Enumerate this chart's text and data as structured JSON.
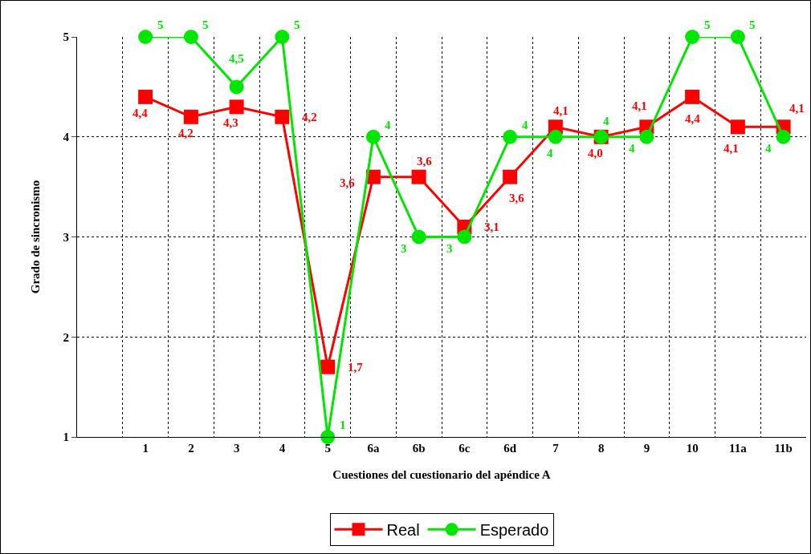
{
  "chart_data": {
    "type": "line",
    "xlabel": "Cuestiones del cuestionario del apéndice A",
    "ylabel": "Grado de sincronismo",
    "categories": [
      null,
      "1",
      "2",
      "3",
      "4",
      "5",
      "6a",
      "6b",
      "6c",
      "6d",
      "7",
      "8",
      "9",
      "10",
      "11a",
      "11b"
    ],
    "series": [
      {
        "name": "Real",
        "color": "#ff0000",
        "marker": "square",
        "values": [
          null,
          4.4,
          4.2,
          4.3,
          4.2,
          1.7,
          3.6,
          3.6,
          3.1,
          3.6,
          4.1,
          4.0,
          4.1,
          4.4,
          4.1,
          4.1
        ],
        "value_labels": [
          null,
          "4,4",
          "4,2",
          "4,3",
          "4,2",
          "1,7",
          "3,6",
          "3,6",
          "3,1",
          "3,6",
          "4,1",
          "4,0",
          "4,1",
          "4,4",
          "4,1",
          "4,1"
        ]
      },
      {
        "name": "Esperado",
        "color": "#00e600",
        "marker": "circle",
        "values": [
          null,
          5,
          5,
          4.5,
          5,
          1,
          4,
          3,
          3,
          4,
          4,
          4,
          4,
          5,
          5,
          4
        ],
        "value_labels": [
          null,
          "5",
          "5",
          "4,5",
          "5",
          "1",
          "4",
          "3",
          "3",
          "4",
          "4",
          "4",
          "4",
          "5",
          "5",
          "4"
        ]
      }
    ],
    "ylim": [
      1,
      5
    ],
    "yticks": [
      1,
      2,
      3,
      4,
      5
    ],
    "grid": true,
    "legend": "bottom",
    "line_style": "solid"
  }
}
